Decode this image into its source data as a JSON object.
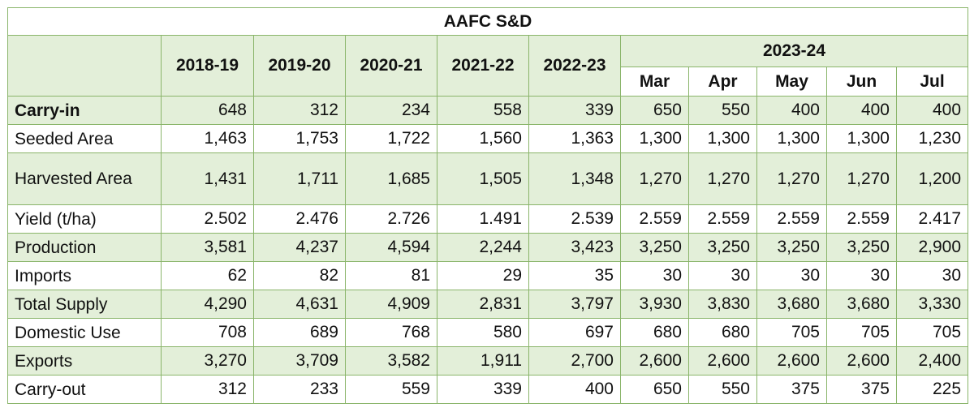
{
  "title": "AAFC S&D",
  "year_columns": [
    "2018-19",
    "2019-20",
    "2020-21",
    "2021-22",
    "2022-23"
  ],
  "forecast_year": "2023-24",
  "forecast_months": [
    "Mar",
    "Apr",
    "May",
    "Jun",
    "Jul"
  ],
  "rows": [
    {
      "label": "Carry-in",
      "bold": true,
      "values": [
        "648",
        "312",
        "234",
        "558",
        "339",
        "650",
        "550",
        "400",
        "400",
        "400"
      ]
    },
    {
      "label": "Seeded Area",
      "values": [
        "1,463",
        "1,753",
        "1,722",
        "1,560",
        "1,363",
        "1,300",
        "1,300",
        "1,300",
        "1,300",
        "1,230"
      ]
    },
    {
      "label": "Harvested Area",
      "tall": true,
      "values": [
        "1,431",
        "1,711",
        "1,685",
        "1,505",
        "1,348",
        "1,270",
        "1,270",
        "1,270",
        "1,270",
        "1,200"
      ]
    },
    {
      "label": "Yield (t/ha)",
      "values": [
        "2.502",
        "2.476",
        "2.726",
        "1.491",
        "2.539",
        "2.559",
        "2.559",
        "2.559",
        "2.559",
        "2.417"
      ]
    },
    {
      "label": "Production",
      "values": [
        "3,581",
        "4,237",
        "4,594",
        "2,244",
        "3,423",
        "3,250",
        "3,250",
        "3,250",
        "3,250",
        "2,900"
      ]
    },
    {
      "label": "Imports",
      "values": [
        "62",
        "82",
        "81",
        "29",
        "35",
        "30",
        "30",
        "30",
        "30",
        "30"
      ]
    },
    {
      "label": "Total Supply",
      "values": [
        "4,290",
        "4,631",
        "4,909",
        "2,831",
        "3,797",
        "3,930",
        "3,830",
        "3,680",
        "3,680",
        "3,330"
      ]
    },
    {
      "label": "Domestic Use",
      "values": [
        "708",
        "689",
        "768",
        "580",
        "697",
        "680",
        "680",
        "705",
        "705",
        "705"
      ]
    },
    {
      "label": "Exports",
      "values": [
        "3,270",
        "3,709",
        "3,582",
        "1,911",
        "2,700",
        "2,600",
        "2,600",
        "2,600",
        "2,600",
        "2,400"
      ]
    },
    {
      "label": "Carry-out",
      "values": [
        "312",
        "233",
        "559",
        "339",
        "400",
        "650",
        "550",
        "375",
        "375",
        "225"
      ]
    }
  ]
}
